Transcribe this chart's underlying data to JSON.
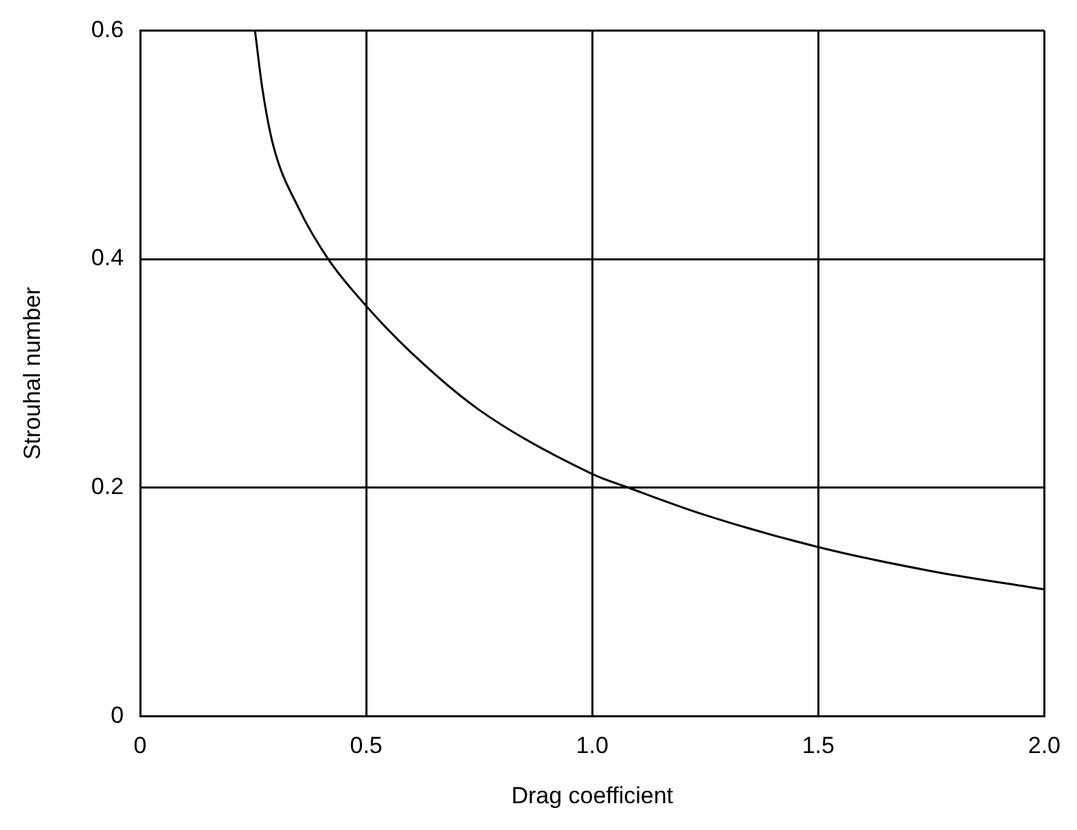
{
  "chart_data": {
    "type": "line",
    "xlabel": "Drag coefficient",
    "ylabel": "Strouhal number",
    "xlim": [
      0,
      2
    ],
    "ylim": [
      0,
      0.6
    ],
    "xticks": [
      0,
      0.5,
      {
        "value": 1,
        "label": "1.0"
      },
      1.5,
      {
        "value": 2,
        "label": "2.0"
      }
    ],
    "yticks": [
      0,
      0.2,
      0.4,
      0.6
    ],
    "grid": true,
    "marker": "none",
    "line_style": "solid",
    "series": [
      {
        "color": "#000000",
        "x": [
          0.254,
          0.27,
          0.294,
          0.35,
          0.416,
          0.5,
          0.6,
          0.75,
          1.0,
          1.08,
          1.25,
          1.5,
          1.75,
          2.0
        ],
        "values": [
          0.6,
          0.55,
          0.5,
          0.445,
          0.4,
          0.359,
          0.318,
          0.268,
          0.212,
          0.2,
          0.176,
          0.148,
          0.127,
          0.111
        ]
      }
    ]
  }
}
